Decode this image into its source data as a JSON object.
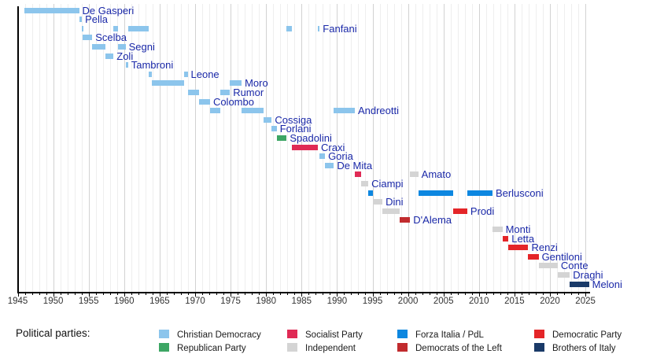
{
  "chart_data": {
    "type": "timeline",
    "title": "",
    "xlabel": "",
    "axis": {
      "start_year": 1945,
      "end_year": 2025.7,
      "tick_years": [
        1945,
        1950,
        1955,
        1960,
        1965,
        1970,
        1975,
        1980,
        1985,
        1990,
        1995,
        2000,
        2005,
        2010,
        2015,
        2020,
        2025
      ],
      "grid": "yearly-light-5yr-darker"
    },
    "label_color": "#1A28A8",
    "parties": {
      "dc": {
        "label": "Christian Democracy",
        "color": "#8CC5EC"
      },
      "pri": {
        "label": "Republican Party",
        "color": "#3DA664"
      },
      "psi": {
        "label": "Socialist Party",
        "color": "#E02A55"
      },
      "ind": {
        "label": "Independent",
        "color": "#D4D4D4"
      },
      "fi": {
        "label": "Forza Italia / PdL",
        "color": "#0D87E0"
      },
      "dsl": {
        "label": "Democrats of the Left",
        "color": "#C12B2E"
      },
      "pd": {
        "label": "Democratic Party",
        "color": "#E42528"
      },
      "fdi": {
        "label": "Brothers of Italy",
        "color": "#1A3A68"
      }
    },
    "ministers": [
      {
        "name": "De Gasperi",
        "terms": [
          {
            "start": 1945.95,
            "end": 1953.65,
            "party": "dc"
          }
        ]
      },
      {
        "name": "Pella",
        "terms": [
          {
            "start": 1953.65,
            "end": 1954.05,
            "party": "dc"
          }
        ]
      },
      {
        "name": "Fanfani",
        "terms": [
          {
            "start": 1954.05,
            "end": 1954.15,
            "party": "dc"
          },
          {
            "start": 1958.5,
            "end": 1959.1,
            "party": "dc"
          },
          {
            "start": 1960.55,
            "end": 1963.45,
            "party": "dc"
          },
          {
            "start": 1982.9,
            "end": 1983.6,
            "party": "dc"
          },
          {
            "start": 1987.3,
            "end": 1987.55,
            "party": "dc"
          }
        ]
      },
      {
        "name": "Scelba",
        "terms": [
          {
            "start": 1954.15,
            "end": 1955.5,
            "party": "dc"
          }
        ]
      },
      {
        "name": "Segni",
        "terms": [
          {
            "start": 1955.5,
            "end": 1957.35,
            "party": "dc"
          },
          {
            "start": 1959.1,
            "end": 1960.2,
            "party": "dc"
          }
        ]
      },
      {
        "name": "Zoli",
        "terms": [
          {
            "start": 1957.35,
            "end": 1958.5,
            "party": "dc"
          }
        ]
      },
      {
        "name": "Tambroni",
        "terms": [
          {
            "start": 1960.2,
            "end": 1960.55,
            "party": "dc"
          }
        ]
      },
      {
        "name": "Leone",
        "terms": [
          {
            "start": 1963.45,
            "end": 1963.95,
            "party": "dc"
          },
          {
            "start": 1968.45,
            "end": 1968.95,
            "party": "dc"
          }
        ]
      },
      {
        "name": "Moro",
        "terms": [
          {
            "start": 1963.95,
            "end": 1968.45,
            "party": "dc"
          },
          {
            "start": 1974.9,
            "end": 1976.55,
            "party": "dc"
          }
        ]
      },
      {
        "name": "Rumor",
        "terms": [
          {
            "start": 1968.95,
            "end": 1970.6,
            "party": "dc"
          },
          {
            "start": 1973.5,
            "end": 1974.9,
            "party": "dc"
          }
        ]
      },
      {
        "name": "Colombo",
        "terms": [
          {
            "start": 1970.6,
            "end": 1972.1,
            "party": "dc"
          }
        ]
      },
      {
        "name": "Andreotti",
        "terms": [
          {
            "start": 1972.1,
            "end": 1973.5,
            "party": "dc"
          },
          {
            "start": 1976.55,
            "end": 1979.6,
            "party": "dc"
          },
          {
            "start": 1989.55,
            "end": 1992.5,
            "party": "dc"
          }
        ]
      },
      {
        "name": "Cossiga",
        "terms": [
          {
            "start": 1979.6,
            "end": 1980.8,
            "party": "dc"
          }
        ]
      },
      {
        "name": "Forlani",
        "terms": [
          {
            "start": 1980.8,
            "end": 1981.5,
            "party": "dc"
          }
        ]
      },
      {
        "name": "Spadolini",
        "terms": [
          {
            "start": 1981.5,
            "end": 1982.9,
            "party": "pri"
          }
        ]
      },
      {
        "name": "Craxi",
        "terms": [
          {
            "start": 1983.6,
            "end": 1987.3,
            "party": "psi"
          }
        ]
      },
      {
        "name": "Goria",
        "terms": [
          {
            "start": 1987.55,
            "end": 1988.3,
            "party": "dc"
          }
        ]
      },
      {
        "name": "De Mita",
        "terms": [
          {
            "start": 1988.3,
            "end": 1989.55,
            "party": "dc"
          }
        ]
      },
      {
        "name": "Amato",
        "terms": [
          {
            "start": 1992.5,
            "end": 1993.35,
            "party": "psi"
          },
          {
            "start": 2000.3,
            "end": 2001.45,
            "party": "ind"
          }
        ]
      },
      {
        "name": "Ciampi",
        "terms": [
          {
            "start": 1993.35,
            "end": 1994.4,
            "party": "ind"
          }
        ]
      },
      {
        "name": "Berlusconi",
        "terms": [
          {
            "start": 1994.4,
            "end": 1995.05,
            "party": "fi"
          },
          {
            "start": 2001.45,
            "end": 2006.4,
            "party": "fi"
          },
          {
            "start": 2008.35,
            "end": 2011.9,
            "party": "fi"
          }
        ]
      },
      {
        "name": "Dini",
        "terms": [
          {
            "start": 1995.05,
            "end": 1996.4,
            "party": "ind"
          }
        ]
      },
      {
        "name": "Prodi",
        "terms": [
          {
            "start": 1996.4,
            "end": 1998.8,
            "party": "ind"
          },
          {
            "start": 2006.4,
            "end": 2008.35,
            "party": "pd"
          }
        ]
      },
      {
        "name": "D'Alema",
        "terms": [
          {
            "start": 1998.8,
            "end": 2000.3,
            "party": "dsl"
          }
        ]
      },
      {
        "name": "Monti",
        "terms": [
          {
            "start": 2011.9,
            "end": 2013.3,
            "party": "ind"
          }
        ]
      },
      {
        "name": "Letta",
        "terms": [
          {
            "start": 2013.3,
            "end": 2014.15,
            "party": "pd"
          }
        ]
      },
      {
        "name": "Renzi",
        "terms": [
          {
            "start": 2014.15,
            "end": 2016.95,
            "party": "pd"
          }
        ]
      },
      {
        "name": "Gentiloni",
        "terms": [
          {
            "start": 2016.95,
            "end": 2018.4,
            "party": "pd"
          }
        ]
      },
      {
        "name": "Conte",
        "terms": [
          {
            "start": 2018.4,
            "end": 2021.1,
            "party": "ind"
          }
        ]
      },
      {
        "name": "Draghi",
        "terms": [
          {
            "start": 2021.1,
            "end": 2022.8,
            "party": "ind"
          }
        ]
      },
      {
        "name": "Meloni",
        "terms": [
          {
            "start": 2022.8,
            "end": 2025.5,
            "party": "fdi"
          }
        ]
      }
    ]
  },
  "legend": {
    "title": "Political parties:",
    "columns": [
      [
        "dc",
        "pri"
      ],
      [
        "psi",
        "ind"
      ],
      [
        "fi",
        "dsl"
      ],
      [
        "pd",
        "fdi"
      ]
    ]
  }
}
